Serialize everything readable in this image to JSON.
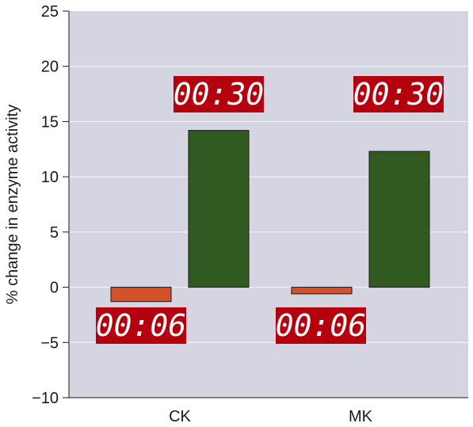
{
  "chart_data": {
    "type": "bar",
    "categories": [
      "CK",
      "MK"
    ],
    "series": [
      {
        "name": "00:06",
        "values": [
          -1.3,
          -0.6
        ]
      },
      {
        "name": "00:30",
        "values": [
          14.2,
          12.3
        ]
      }
    ],
    "ylabel": "% change in enzyme activity",
    "xlabel": "",
    "ylim": [
      -10,
      25
    ],
    "yticks": [
      25,
      20,
      15,
      10,
      5,
      0,
      -5,
      -10
    ],
    "ytick_labels": [
      "25",
      "20",
      "15",
      "10",
      "5",
      "0",
      "−5",
      "−10"
    ],
    "grid": true,
    "legend": "timer labels placed next to bars"
  },
  "colors": {
    "plot_background": "#d4d5e1",
    "grid": "#f2f2f6",
    "series_06": "#d4512a",
    "series_30": "#305a1f",
    "timer_background": "#b5000e",
    "timer_text": "#ffffff",
    "bar_outline": "#1a1a1a"
  }
}
